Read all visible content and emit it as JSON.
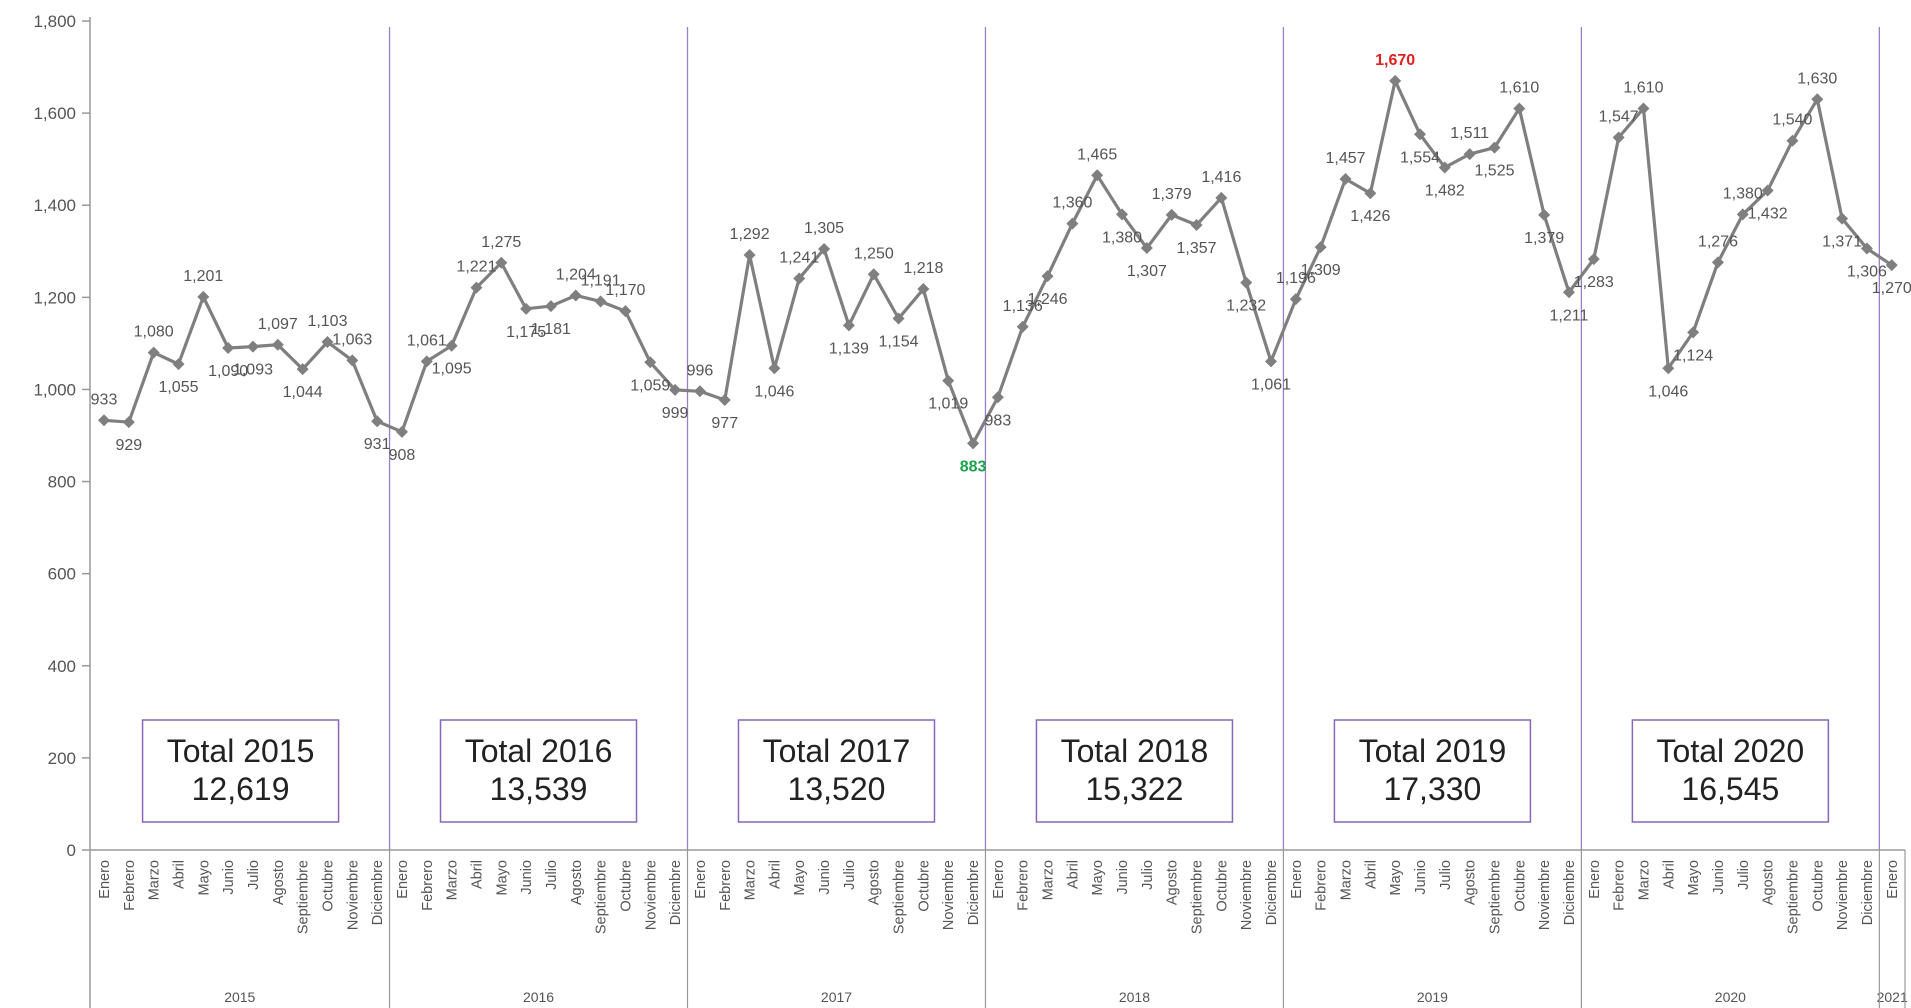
{
  "chart_data": {
    "type": "line",
    "ylim": [
      0,
      1800
    ],
    "y_ticks": [
      "0",
      "200",
      "400",
      "600",
      "800",
      "1,000",
      "1,200",
      "1,400",
      "1,600",
      "1,800"
    ],
    "y_tick_values": [
      0,
      200,
      400,
      600,
      800,
      1000,
      1200,
      1400,
      1600,
      1800
    ],
    "years": [
      {
        "label": "2015",
        "months": [
          "Enero",
          "Febrero",
          "Marzo",
          "Abril",
          "Mayo",
          "Junio",
          "Julio",
          "Agosto",
          "Septiembre",
          "Octubre",
          "Noviembre",
          "Diciembre"
        ]
      },
      {
        "label": "2016",
        "months": [
          "Enero",
          "Febrero",
          "Marzo",
          "Abril",
          "Mayo",
          "Junio",
          "Julio",
          "Agosto",
          "Septiembre",
          "Octubre",
          "Noviembre",
          "Diciembre"
        ]
      },
      {
        "label": "2017",
        "months": [
          "Enero",
          "Febrero",
          "Marzo",
          "Abril",
          "Mayo",
          "Junio",
          "Julio",
          "Agosto",
          "Septiembre",
          "Octubre",
          "Noviembre",
          "Diciembre"
        ]
      },
      {
        "label": "2018",
        "months": [
          "Enero",
          "Febrero",
          "Marzo",
          "Abril",
          "Mayo",
          "Junio",
          "Julio",
          "Agosto",
          "Septiembre",
          "Octubre",
          "Noviembre",
          "Diciembre"
        ]
      },
      {
        "label": "2019",
        "months": [
          "Enero",
          "Febrero",
          "Marzo",
          "Abril",
          "Mayo",
          "Junio",
          "Julio",
          "Agosto",
          "Septiembre",
          "Octubre",
          "Noviembre",
          "Diciembre"
        ]
      },
      {
        "label": "2020",
        "months": [
          "Enero",
          "Febrero",
          "Marzo",
          "Abril",
          "Mayo",
          "Junio",
          "Julio",
          "Agosto",
          "Septiembre",
          "Octubre",
          "Noviembre",
          "Diciembre"
        ]
      },
      {
        "label": "2021",
        "months": [
          "Enero"
        ]
      }
    ],
    "series": [
      {
        "values": [
          933,
          929,
          1080,
          1055,
          1201,
          1090,
          1093,
          1097,
          1044,
          1103,
          1063,
          931,
          908,
          1061,
          1095,
          1221,
          1275,
          1175,
          1181,
          1204,
          1191,
          1170,
          1059,
          999,
          996,
          977,
          1292,
          1046,
          1241,
          1305,
          1139,
          1250,
          1154,
          1218,
          1019,
          883,
          983,
          1136,
          1246,
          1360,
          1465,
          1380,
          1307,
          1379,
          1357,
          1416,
          1232,
          1061,
          1196,
          1309,
          1457,
          1426,
          1670,
          1554,
          1482,
          1511,
          1525,
          1610,
          1379,
          1211,
          1283,
          1547,
          1610,
          1046,
          1124,
          1276,
          1380,
          1432,
          1540,
          1630,
          1371,
          1306,
          1270
        ],
        "labels": [
          "933",
          "929",
          "1,080",
          "1,055",
          "1,201",
          "1,090",
          "1,093",
          "1,097",
          "1,044",
          "1,103",
          "1,063",
          "931",
          "908",
          "1,061",
          "1,095",
          "1,221",
          "1,275",
          "1,175",
          "1,181",
          "1,204",
          "1,191",
          "1,170",
          "1,059",
          "999",
          "996",
          "977",
          "1,292",
          "1,046",
          "1,241",
          "1,305",
          "1,139",
          "1,250",
          "1,154",
          "1,218",
          "1,019",
          "883",
          "983",
          "1,136",
          "1,246",
          "1,360",
          "1,465",
          "1,380",
          "1,307",
          "1,379",
          "1,357",
          "1,416",
          "1,232",
          "1,061",
          "1,196",
          "1,309",
          "1,457",
          "1,426",
          "1,670",
          "1,554",
          "1,482",
          "1,511",
          "1,525",
          "1,610",
          "1,379",
          "1,211",
          "1,283",
          "1,547",
          "1,610",
          "1,046",
          "1,124",
          "1,276",
          "1,380",
          "1,432",
          "1,540",
          "1,630",
          "1,371",
          "1,306",
          "1,270"
        ]
      }
    ],
    "highlights": {
      "max_index": 52,
      "min_index": 35
    },
    "totals": [
      {
        "title": "Total 2015",
        "value": "12,619"
      },
      {
        "title": "Total 2016",
        "value": "13,539"
      },
      {
        "title": "Total 2017",
        "value": "13,520"
      },
      {
        "title": "Total 2018",
        "value": "15,322"
      },
      {
        "title": "Total 2019",
        "value": "17,330"
      },
      {
        "title": "Total 2020",
        "value": "16,545"
      }
    ],
    "colors": {
      "line": "#7f7f7f",
      "marker": "#7f7f7f",
      "divider": "#9b7fc6",
      "box_border": "#8a66b8",
      "axis": "#999999",
      "max_label": "#e02020",
      "min_label": "#1aa34a"
    },
    "grid": false,
    "legend": "none"
  }
}
